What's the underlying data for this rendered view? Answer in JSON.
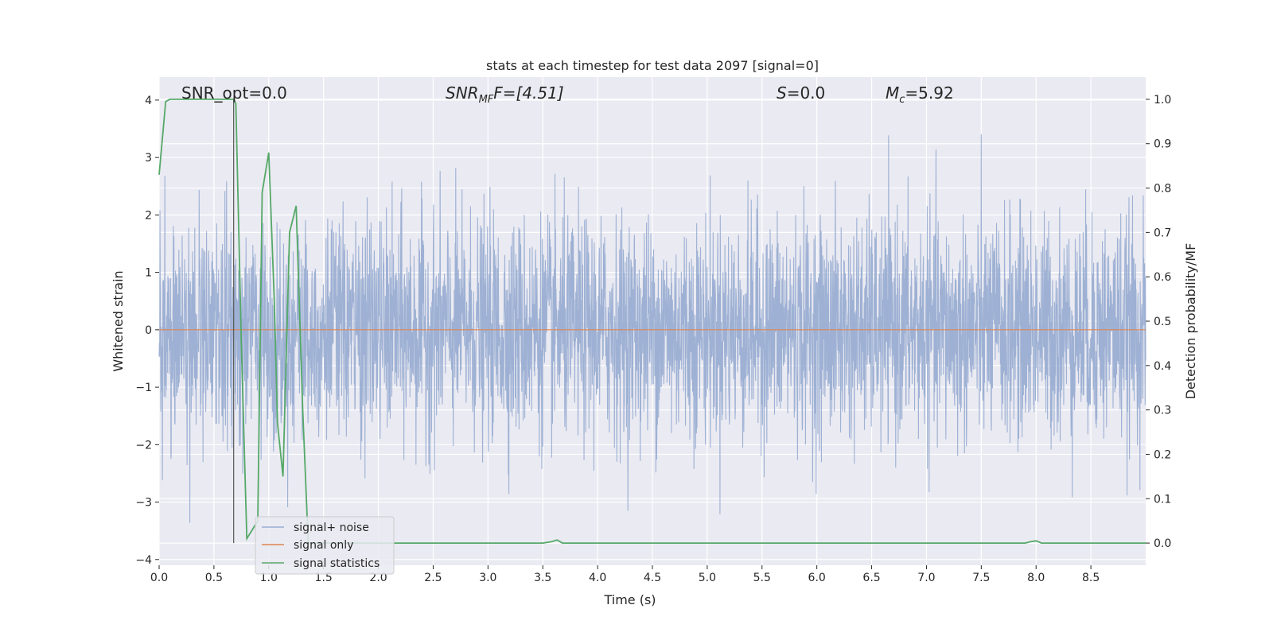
{
  "chart_data": {
    "type": "line",
    "title": "stats at each timestep for test data 2097 [signal=0]",
    "xlabel": "Time (s)",
    "ylabel": "Whitened strain",
    "y2label": "Detection probability/MF",
    "xlim": [
      0,
      9.0
    ],
    "ylim": [
      -4.1,
      4.4
    ],
    "y2lim": [
      -0.05,
      1.05
    ],
    "x_ticks": [
      0.0,
      0.5,
      1.0,
      1.5,
      2.0,
      2.5,
      3.0,
      3.5,
      4.0,
      4.5,
      5.0,
      5.5,
      6.0,
      6.5,
      7.0,
      7.5,
      8.0,
      8.5
    ],
    "x_tick_labels": [
      "0.0",
      "0.5",
      "1.0",
      "1.5",
      "2.0",
      "2.5",
      "3.0",
      "3.5",
      "4.0",
      "4.5",
      "5.0",
      "5.5",
      "6.0",
      "6.5",
      "7.0",
      "7.5",
      "8.0",
      "8.5"
    ],
    "y_ticks": [
      -4,
      -3,
      -2,
      -1,
      0,
      1,
      2,
      3,
      4
    ],
    "y_tick_labels": [
      "−4",
      "−3",
      "−2",
      "−1",
      "0",
      "1",
      "2",
      "3",
      "4"
    ],
    "y2_ticks": [
      0.0,
      0.1,
      0.2,
      0.3,
      0.4,
      0.5,
      0.6,
      0.7,
      0.8,
      0.9,
      1.0
    ],
    "y2_tick_labels": [
      "0.0",
      "0.1",
      "0.2",
      "0.3",
      "0.4",
      "0.5",
      "0.6",
      "0.7",
      "0.8",
      "0.9",
      "1.0"
    ],
    "grid": true,
    "legend_position": "bottom-left",
    "annotations": {
      "snr_opt": "SNR_opt=0.0",
      "snr_mf_main": "SNR",
      "snr_mf_sub": "MF",
      "snr_mf_value": "F=[4.51]",
      "s_main": "S",
      "s_value": "=0.0",
      "mc_main": "M",
      "mc_sub": "c",
      "mc_value": "=5.92"
    },
    "vline_x": 0.68,
    "series": [
      {
        "name": "signal+ noise",
        "color": "#9aaed2",
        "axis": "left",
        "kind": "noise",
        "x_range": [
          0,
          9.0
        ],
        "approx_std": 0.95,
        "approx_peak_range": [
          -3.6,
          4.0
        ]
      },
      {
        "name": "signal only",
        "color": "#dd8452",
        "axis": "left",
        "x": [
          0,
          9.0
        ],
        "y": [
          0,
          0
        ]
      },
      {
        "name": "signal statistics",
        "color": "#55a868",
        "axis": "right",
        "x": [
          0.0,
          0.06,
          0.1,
          0.2,
          0.3,
          0.4,
          0.5,
          0.6,
          0.68,
          0.7,
          0.75,
          0.8,
          0.85,
          0.9,
          0.94,
          1.0,
          1.05,
          1.08,
          1.13,
          1.19,
          1.25,
          1.31,
          1.36,
          1.45,
          1.6,
          2.0,
          2.5,
          3.0,
          3.5,
          3.58,
          3.63,
          3.68,
          4.0,
          5.0,
          6.0,
          7.0,
          7.9,
          7.95,
          8.0,
          8.05,
          8.2,
          9.0
        ],
        "y": [
          0.83,
          0.995,
          1.0,
          1.0,
          1.0,
          1.0,
          1.0,
          1.0,
          1.0,
          0.99,
          0.45,
          0.01,
          0.03,
          0.05,
          0.79,
          0.88,
          0.55,
          0.27,
          0.15,
          0.7,
          0.76,
          0.3,
          0.0,
          0.0,
          0.0,
          0.0,
          0.0,
          0.0,
          0.0,
          0.003,
          0.007,
          0.0,
          0.0,
          0.0,
          0.0,
          0.0,
          0.0,
          0.003,
          0.005,
          0.0,
          0.0,
          0.0
        ]
      }
    ]
  }
}
